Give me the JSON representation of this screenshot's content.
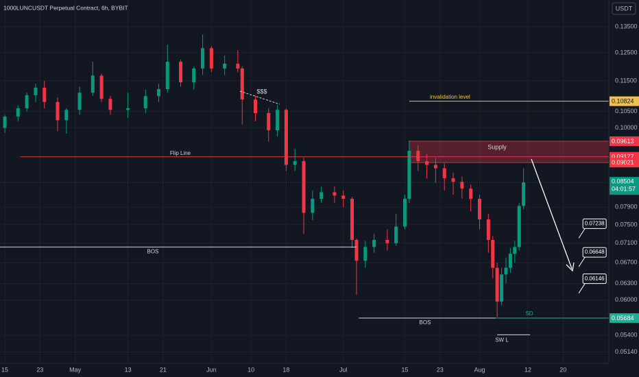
{
  "header": {
    "title": "1000LUNCUSDT Perpetual Contract, 6h, BYBIT",
    "currency": "USDT",
    "countdown": "04:01:57",
    "sweep_label": "$$$"
  },
  "chart_data": {
    "type": "candlestick",
    "log_scale": true,
    "grid": true,
    "colors": {
      "up": "#089981",
      "down": "#f23645"
    },
    "ylim": [
      0.0497,
      0.1462
    ],
    "yticks": [
      {
        "value": 0.135,
        "label": "0.13500"
      },
      {
        "value": 0.125,
        "label": "0.12500"
      },
      {
        "value": 0.115,
        "label": "0.11500"
      },
      {
        "value": 0.105,
        "label": "0.10500"
      },
      {
        "value": 0.1,
        "label": "0.10000"
      },
      {
        "value": 0.079,
        "label": "0.07900"
      },
      {
        "value": 0.075,
        "label": "0.07500"
      },
      {
        "value": 0.071,
        "label": "0.07100"
      },
      {
        "value": 0.067,
        "label": "0.06700"
      },
      {
        "value": 0.063,
        "label": "0.06300"
      },
      {
        "value": 0.06,
        "label": "0.06000"
      },
      {
        "value": 0.054,
        "label": "0.05400"
      },
      {
        "value": 0.0514,
        "label": "0.05140"
      }
    ],
    "xlim": [
      -1.1,
      137.4
    ],
    "xticks": [
      {
        "value": 0,
        "label": "15"
      },
      {
        "value": 8,
        "label": "23"
      },
      {
        "value": 16,
        "label": "May"
      },
      {
        "value": 28,
        "label": "13"
      },
      {
        "value": 36,
        "label": "21"
      },
      {
        "value": 47,
        "label": "Jun"
      },
      {
        "value": 56,
        "label": "10"
      },
      {
        "value": 64,
        "label": "18"
      },
      {
        "value": 77,
        "label": "Jul"
      },
      {
        "value": 91,
        "label": "15"
      },
      {
        "value": 99,
        "label": "23"
      },
      {
        "value": 108,
        "label": "Aug"
      },
      {
        "value": 119,
        "label": "12"
      },
      {
        "value": 127,
        "label": "20"
      }
    ],
    "candles": [
      {
        "x": 0,
        "open": 0.1,
        "high": 0.104,
        "low": 0.0985,
        "close": 0.1034
      },
      {
        "x": 3,
        "open": 0.1034,
        "high": 0.107,
        "low": 0.102,
        "close": 0.106
      },
      {
        "x": 5,
        "open": 0.106,
        "high": 0.111,
        "low": 0.105,
        "close": 0.1102
      },
      {
        "x": 7,
        "open": 0.1102,
        "high": 0.114,
        "low": 0.108,
        "close": 0.1127
      },
      {
        "x": 9,
        "open": 0.1127,
        "high": 0.115,
        "low": 0.106,
        "close": 0.108
      },
      {
        "x": 12,
        "open": 0.108,
        "high": 0.1095,
        "low": 0.099,
        "close": 0.1023
      },
      {
        "x": 14,
        "open": 0.1023,
        "high": 0.106,
        "low": 0.0983,
        "close": 0.1055
      },
      {
        "x": 17,
        "open": 0.1055,
        "high": 0.113,
        "low": 0.104,
        "close": 0.111
      },
      {
        "x": 20,
        "open": 0.111,
        "high": 0.1217,
        "low": 0.11,
        "close": 0.1168
      },
      {
        "x": 22,
        "open": 0.1168,
        "high": 0.1175,
        "low": 0.108,
        "close": 0.109
      },
      {
        "x": 24,
        "open": 0.109,
        "high": 0.11,
        "low": 0.104,
        "close": 0.1055
      },
      {
        "x": 28,
        "open": 0.1055,
        "high": 0.111,
        "low": 0.103,
        "close": 0.106
      },
      {
        "x": 32,
        "open": 0.106,
        "high": 0.112,
        "low": 0.1045,
        "close": 0.1099
      },
      {
        "x": 35,
        "open": 0.1099,
        "high": 0.114,
        "low": 0.108,
        "close": 0.1122
      },
      {
        "x": 37,
        "open": 0.1122,
        "high": 0.128,
        "low": 0.111,
        "close": 0.1217
      },
      {
        "x": 40,
        "open": 0.1217,
        "high": 0.1225,
        "low": 0.113,
        "close": 0.1145
      },
      {
        "x": 43,
        "open": 0.1145,
        "high": 0.12,
        "low": 0.112,
        "close": 0.1193
      },
      {
        "x": 45,
        "open": 0.1193,
        "high": 0.132,
        "low": 0.117,
        "close": 0.1267
      },
      {
        "x": 47,
        "open": 0.1267,
        "high": 0.1275,
        "low": 0.118,
        "close": 0.1193
      },
      {
        "x": 50,
        "open": 0.1193,
        "high": 0.124,
        "low": 0.117,
        "close": 0.121
      },
      {
        "x": 53,
        "open": 0.121,
        "high": 0.126,
        "low": 0.118,
        "close": 0.1193
      },
      {
        "x": 54,
        "open": 0.1193,
        "high": 0.12,
        "low": 0.101,
        "close": 0.1088
      },
      {
        "x": 57,
        "open": 0.1088,
        "high": 0.11,
        "low": 0.102,
        "close": 0.1045
      },
      {
        "x": 60,
        "open": 0.1045,
        "high": 0.106,
        "low": 0.096,
        "close": 0.0993
      },
      {
        "x": 62,
        "open": 0.0993,
        "high": 0.107,
        "low": 0.0975,
        "close": 0.1055
      },
      {
        "x": 64,
        "open": 0.1055,
        "high": 0.106,
        "low": 0.088,
        "close": 0.0896
      },
      {
        "x": 66,
        "open": 0.0896,
        "high": 0.094,
        "low": 0.088,
        "close": 0.0906
      },
      {
        "x": 68,
        "open": 0.0906,
        "high": 0.0915,
        "low": 0.073,
        "close": 0.0777
      },
      {
        "x": 70,
        "open": 0.0777,
        "high": 0.083,
        "low": 0.076,
        "close": 0.081
      },
      {
        "x": 72,
        "open": 0.081,
        "high": 0.084,
        "low": 0.08,
        "close": 0.0826
      },
      {
        "x": 75,
        "open": 0.0826,
        "high": 0.084,
        "low": 0.08,
        "close": 0.0818
      },
      {
        "x": 77,
        "open": 0.0818,
        "high": 0.083,
        "low": 0.079,
        "close": 0.081
      },
      {
        "x": 79,
        "open": 0.081,
        "high": 0.0815,
        "low": 0.07,
        "close": 0.0717
      },
      {
        "x": 80,
        "open": 0.0717,
        "high": 0.072,
        "low": 0.0609,
        "close": 0.0674
      },
      {
        "x": 82,
        "open": 0.0674,
        "high": 0.0715,
        "low": 0.066,
        "close": 0.0702
      },
      {
        "x": 84,
        "open": 0.0702,
        "high": 0.073,
        "low": 0.069,
        "close": 0.0717
      },
      {
        "x": 87,
        "open": 0.0717,
        "high": 0.074,
        "low": 0.0695,
        "close": 0.071
      },
      {
        "x": 89,
        "open": 0.071,
        "high": 0.0775,
        "low": 0.0705,
        "close": 0.0746
      },
      {
        "x": 91,
        "open": 0.0746,
        "high": 0.082,
        "low": 0.074,
        "close": 0.081
      },
      {
        "x": 92,
        "open": 0.081,
        "high": 0.0963,
        "low": 0.08,
        "close": 0.0934
      },
      {
        "x": 94,
        "open": 0.0934,
        "high": 0.095,
        "low": 0.088,
        "close": 0.0906
      },
      {
        "x": 96,
        "open": 0.0906,
        "high": 0.0925,
        "low": 0.086,
        "close": 0.0896
      },
      {
        "x": 98,
        "open": 0.0896,
        "high": 0.0915,
        "low": 0.085,
        "close": 0.0887
      },
      {
        "x": 100,
        "open": 0.0887,
        "high": 0.09,
        "low": 0.083,
        "close": 0.0861
      },
      {
        "x": 102,
        "open": 0.0861,
        "high": 0.0875,
        "low": 0.082,
        "close": 0.0852
      },
      {
        "x": 104,
        "open": 0.0852,
        "high": 0.0865,
        "low": 0.081,
        "close": 0.0835
      },
      {
        "x": 106,
        "open": 0.0835,
        "high": 0.0845,
        "low": 0.078,
        "close": 0.081
      },
      {
        "x": 108,
        "open": 0.081,
        "high": 0.082,
        "low": 0.074,
        "close": 0.0762
      },
      {
        "x": 110,
        "open": 0.0762,
        "high": 0.0775,
        "low": 0.069,
        "close": 0.0717
      },
      {
        "x": 111,
        "open": 0.0717,
        "high": 0.0725,
        "low": 0.064,
        "close": 0.066
      },
      {
        "x": 112,
        "open": 0.066,
        "high": 0.067,
        "low": 0.057,
        "close": 0.0597
      },
      {
        "x": 113,
        "open": 0.0597,
        "high": 0.066,
        "low": 0.059,
        "close": 0.0647
      },
      {
        "x": 114,
        "open": 0.0647,
        "high": 0.068,
        "low": 0.063,
        "close": 0.066
      },
      {
        "x": 115,
        "open": 0.066,
        "high": 0.07,
        "low": 0.065,
        "close": 0.0688
      },
      {
        "x": 116,
        "open": 0.0688,
        "high": 0.0715,
        "low": 0.067,
        "close": 0.0702
      },
      {
        "x": 117,
        "open": 0.0702,
        "high": 0.08,
        "low": 0.0695,
        "close": 0.0793
      },
      {
        "x": 118,
        "open": 0.0793,
        "high": 0.0887,
        "low": 0.0785,
        "close": 0.08504
      }
    ],
    "zone": {
      "label": "Supply",
      "top": 0.09613,
      "bottom": 0.09021,
      "from": 92,
      "color": "#f23645"
    },
    "levels": [
      {
        "label": "invalidation level",
        "value": 0.10824,
        "from": 92,
        "color": "#f0c14b",
        "badge": true
      },
      {
        "label": "Flip Line",
        "value": 0.09177,
        "from": 3.5,
        "color": "#f23645",
        "badge": true
      },
      {
        "label": "BOS",
        "value": 0.0702,
        "from": -1.1,
        "to": 80,
        "color": "#d1d4dc",
        "badge": false
      },
      {
        "label": "BOS",
        "value": 0.05684,
        "from": 80.5,
        "to": 111.7,
        "color": "#d1d4dc",
        "badge": false
      },
      {
        "label": "SD",
        "value": 0.05684,
        "from": 111.7,
        "color": "#22ab94",
        "badge": true
      },
      {
        "label": "SW L",
        "value": 0.0541,
        "from": 112,
        "to": 119.5,
        "color": "#d1d4dc",
        "badge": false
      }
    ],
    "last_price": 0.08504,
    "targets": [
      {
        "x": 131.5,
        "value": 0.07238
      },
      {
        "x": 131.5,
        "value": 0.06648
      },
      {
        "x": 131.5,
        "value": 0.06146
      }
    ]
  }
}
